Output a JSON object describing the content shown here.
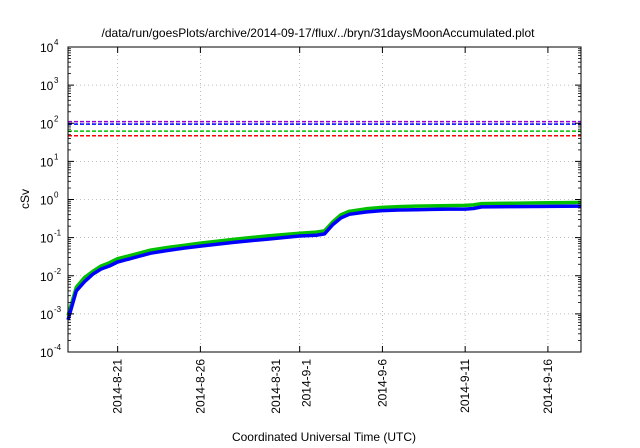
{
  "chart_data": {
    "type": "line",
    "title": "/data/run/goesPlots/archive/2014-09-17/flux/../bryn/31daysMoonAccumulated.plot",
    "xlabel": "Coordinated Universal Time (UTC)",
    "ylabel": "cSv",
    "xlim": [
      "2014-08-18",
      "2014-09-18"
    ],
    "ylim": [
      0.0001,
      10000
    ],
    "yscale": "log",
    "grid": true,
    "x_ticks": [
      {
        "date": "2014-08-21",
        "label": "2014-8-21"
      },
      {
        "date": "2014-08-26",
        "label": "2014-8-26"
      },
      {
        "date": "2014-08-31",
        "label": "2014-8-31"
      },
      {
        "date": "2014-09-01",
        "label": "2014-9-1"
      },
      {
        "date": "2014-09-06",
        "label": "2014-9-6"
      },
      {
        "date": "2014-09-11",
        "label": "2014-9-11"
      },
      {
        "date": "2014-09-16",
        "label": "2014-9-16"
      }
    ],
    "y_ticks": [
      {
        "value": 0.0001,
        "base": "10",
        "exp": "-4"
      },
      {
        "value": 0.001,
        "base": "10",
        "exp": "-3"
      },
      {
        "value": 0.01,
        "base": "10",
        "exp": "-2"
      },
      {
        "value": 0.1,
        "base": "10",
        "exp": "-1"
      },
      {
        "value": 1,
        "base": "10",
        "exp": "0"
      },
      {
        "value": 10,
        "base": "10",
        "exp": "1"
      },
      {
        "value": 100,
        "base": "10",
        "exp": "2"
      },
      {
        "value": 1000,
        "base": "10",
        "exp": "3"
      },
      {
        "value": 10000,
        "base": "10",
        "exp": "4"
      }
    ],
    "thresholds": [
      {
        "value": 110,
        "color": "#9400d3"
      },
      {
        "value": 95,
        "color": "#0000ff"
      },
      {
        "value": 62,
        "color": "#00c000"
      },
      {
        "value": 47,
        "color": "#ff0000"
      }
    ],
    "x": [
      "2014-08-18",
      "2014-08-18 12:00",
      "2014-08-19",
      "2014-08-19 12:00",
      "2014-08-20",
      "2014-08-20 12:00",
      "2014-08-21",
      "2014-08-22",
      "2014-08-23",
      "2014-08-24",
      "2014-08-25",
      "2014-08-26",
      "2014-08-27",
      "2014-08-28",
      "2014-08-29",
      "2014-08-30",
      "2014-08-31",
      "2014-09-01",
      "2014-09-02",
      "2014-09-02 12:00",
      "2014-09-03",
      "2014-09-03 12:00",
      "2014-09-04",
      "2014-09-05",
      "2014-09-06",
      "2014-09-07",
      "2014-09-08",
      "2014-09-09",
      "2014-09-10",
      "2014-09-11",
      "2014-09-11 12:00",
      "2014-09-12",
      "2014-09-13",
      "2014-09-14",
      "2014-09-15",
      "2014-09-16",
      "2014-09-17",
      "2014-09-18"
    ],
    "series": [
      {
        "color": "#00c000",
        "values": [
          0.0009,
          0.005,
          0.009,
          0.013,
          0.018,
          0.022,
          0.028,
          0.036,
          0.047,
          0.055,
          0.063,
          0.072,
          0.08,
          0.09,
          0.1,
          0.11,
          0.12,
          0.13,
          0.14,
          0.15,
          0.26,
          0.4,
          0.49,
          0.57,
          0.62,
          0.65,
          0.67,
          0.68,
          0.69,
          0.7,
          0.72,
          0.78,
          0.79,
          0.8,
          0.81,
          0.82,
          0.83,
          0.84
        ]
      },
      {
        "color": "#0000ff",
        "values": [
          0.0007,
          0.004,
          0.007,
          0.011,
          0.015,
          0.018,
          0.023,
          0.03,
          0.039,
          0.046,
          0.053,
          0.06,
          0.067,
          0.075,
          0.083,
          0.091,
          0.1,
          0.11,
          0.115,
          0.125,
          0.22,
          0.33,
          0.41,
          0.47,
          0.51,
          0.53,
          0.54,
          0.55,
          0.56,
          0.56,
          0.58,
          0.64,
          0.645,
          0.65,
          0.655,
          0.66,
          0.665,
          0.67
        ]
      }
    ]
  }
}
